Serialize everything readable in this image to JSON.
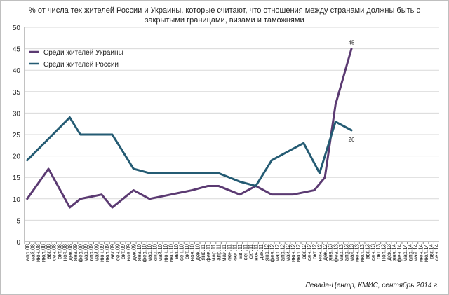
{
  "chart_data": {
    "type": "line",
    "title_lines": [
      "% от числа тех жителей России и Украины, которые считают, что отношения между странами должны быть с",
      "закрытыми границами, визами и таможнями"
    ],
    "ylim": [
      0,
      50
    ],
    "yticks": [
      0,
      5,
      10,
      15,
      20,
      25,
      30,
      35,
      40,
      45,
      50
    ],
    "grid": true,
    "legend_position": "top-left",
    "source": "Левада-Центр, КМИС, сентябрь 2014 г.",
    "categories": [
      "апр.08",
      "май.08",
      "июн.08",
      "июл.08",
      "авг.08",
      "сен.08",
      "окт.08",
      "ноя.08",
      "дек.08",
      "янв.09",
      "фев.09",
      "мар.09",
      "апр.09",
      "май.09",
      "июн.09",
      "июл.09",
      "авг.09",
      "сен.09",
      "окт.09",
      "ноя.09",
      "дек.09",
      "янв.10",
      "фев.10",
      "мар.10",
      "апр.10",
      "май.10",
      "июн.10",
      "июл.10",
      "авг.10",
      "сен.10",
      "окт.10",
      "ноя.10",
      "дек.10",
      "янв.11",
      "фев.11",
      "мар.11",
      "апр.11",
      "май.11",
      "июн.11",
      "июл.11",
      "авг.11",
      "сен.11",
      "окт.11",
      "ноя.11",
      "дек.11",
      "янв.12",
      "фев.12",
      "мар.12",
      "апр.12",
      "май.12",
      "июн.12",
      "июл.12",
      "авг.12",
      "сен.12",
      "окт.12",
      "ноя.12",
      "дек.12",
      "янв.13",
      "фев.13",
      "мар.13",
      "апр.13",
      "май.13",
      "июн.13",
      "июл.13",
      "авг.13",
      "сен.13",
      "окт.13",
      "ноя.13",
      "дек.13",
      "янв.14",
      "фев.14",
      "мар.14",
      "апр.14",
      "май.14",
      "июн.14",
      "июл.14",
      "авг.14",
      "сен.14"
    ],
    "series": [
      {
        "name": "Среди жителей Украины",
        "color": "#5b3a72",
        "end_label": "45",
        "points": [
          [
            0,
            10
          ],
          [
            8,
            17
          ],
          [
            16,
            8
          ],
          [
            20,
            10
          ],
          [
            28,
            11
          ],
          [
            32,
            8
          ],
          [
            40,
            12
          ],
          [
            46,
            10
          ],
          [
            54,
            11
          ],
          [
            62,
            12
          ],
          [
            68,
            13
          ],
          [
            72,
            13
          ],
          [
            80,
            11
          ],
          [
            86,
            13
          ],
          [
            92,
            11
          ],
          [
            100,
            11
          ],
          [
            108,
            12
          ],
          [
            112,
            15
          ],
          [
            116,
            32
          ],
          [
            122,
            45
          ]
        ]
      },
      {
        "name": "Среди жителей России",
        "color": "#245b73",
        "end_label": "26",
        "points": [
          [
            0,
            19
          ],
          [
            16,
            29
          ],
          [
            20,
            25
          ],
          [
            32,
            25
          ],
          [
            40,
            17
          ],
          [
            46,
            16
          ],
          [
            72,
            16
          ],
          [
            80,
            14
          ],
          [
            86,
            13
          ],
          [
            92,
            19
          ],
          [
            104,
            23
          ],
          [
            110,
            16
          ],
          [
            116,
            28
          ],
          [
            122,
            26
          ]
        ]
      }
    ]
  }
}
